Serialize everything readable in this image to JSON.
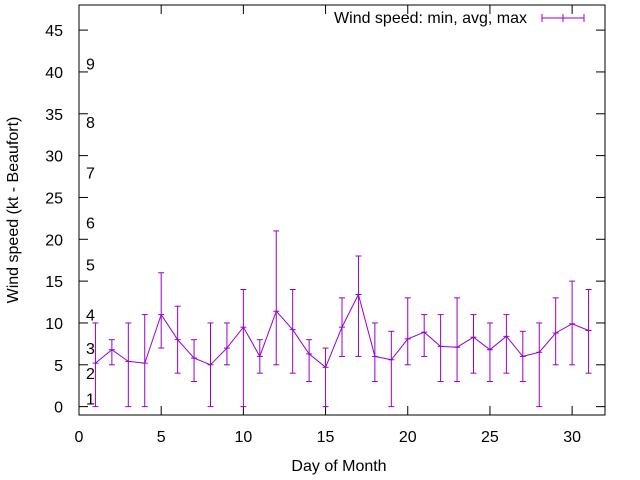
{
  "chart_data": {
    "type": "line",
    "title": "",
    "xlabel": "Day of Month",
    "ylabel": "Wind speed (kt - Beaufort)",
    "xlim": [
      0,
      32
    ],
    "ylim": [
      -1,
      48
    ],
    "x_ticks": [
      "0",
      "5",
      "10",
      "15",
      "20",
      "25",
      "30"
    ],
    "x_tick_values": [
      0,
      5,
      10,
      15,
      20,
      25,
      30
    ],
    "y_ticks": [
      "0",
      "5",
      "10",
      "15",
      "20",
      "25",
      "30",
      "35",
      "40",
      "45"
    ],
    "y_tick_values": [
      0,
      5,
      10,
      15,
      20,
      25,
      30,
      35,
      40,
      45
    ],
    "beaufort_labels": [
      {
        "label": "1",
        "value": 1
      },
      {
        "label": "2",
        "value": 4
      },
      {
        "label": "3",
        "value": 7
      },
      {
        "label": "4",
        "value": 11
      },
      {
        "label": "5",
        "value": 17
      },
      {
        "label": "6",
        "value": 22
      },
      {
        "label": "7",
        "value": 28
      },
      {
        "label": "8",
        "value": 34
      },
      {
        "label": "9",
        "value": 41
      }
    ],
    "legend": {
      "label": "Wind speed: min, avg, max",
      "position": "top-right"
    },
    "color": "#9400d3",
    "series": [
      {
        "name": "Wind speed: min, avg, max",
        "x": [
          1,
          2,
          3,
          4,
          5,
          6,
          7,
          8,
          9,
          10,
          11,
          12,
          13,
          14,
          15,
          16,
          17,
          18,
          19,
          20,
          21,
          22,
          23,
          24,
          25,
          26,
          27,
          28,
          29,
          30,
          31
        ],
        "avg": [
          5.2,
          6.8,
          5.4,
          5.2,
          11.0,
          8.0,
          5.8,
          5.0,
          7.0,
          9.5,
          6.0,
          11.4,
          9.2,
          6.3,
          4.7,
          9.5,
          13.4,
          6.0,
          5.6,
          8.1,
          8.9,
          7.2,
          7.1,
          8.3,
          6.8,
          8.4,
          6.0,
          6.5,
          8.8,
          9.9,
          9.1
        ],
        "min": [
          0,
          5,
          0,
          0,
          7,
          4,
          3,
          0,
          5,
          0,
          4,
          5,
          4,
          3,
          0,
          6,
          6,
          3,
          0,
          5,
          6,
          3,
          3,
          4,
          3,
          4,
          3,
          0,
          5,
          5,
          4
        ],
        "max": [
          10,
          8,
          10,
          11,
          16,
          12,
          8,
          10,
          10,
          14,
          8,
          21,
          14,
          8,
          7,
          13,
          18,
          10,
          9,
          13,
          11,
          11,
          13,
          11,
          10,
          11,
          9,
          10,
          13,
          15,
          14
        ]
      }
    ]
  }
}
